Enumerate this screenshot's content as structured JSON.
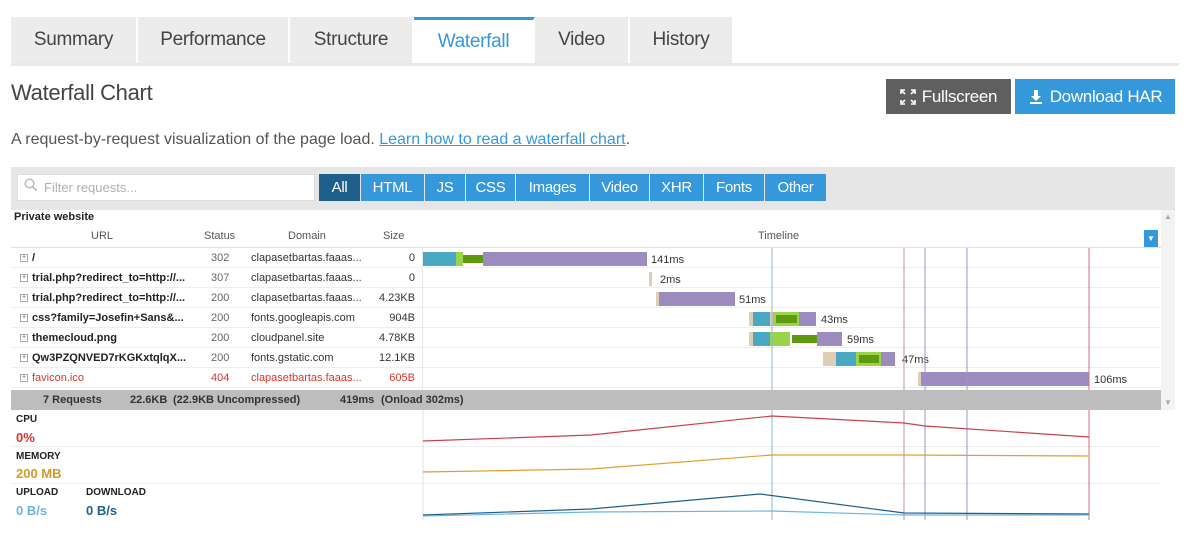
{
  "tabs": [
    {
      "label": "Summary",
      "active": false
    },
    {
      "label": "Performance",
      "active": false
    },
    {
      "label": "Structure",
      "active": false
    },
    {
      "label": "Waterfall",
      "active": true
    },
    {
      "label": "Video",
      "active": false
    },
    {
      "label": "History",
      "active": false
    }
  ],
  "page": {
    "title": "Waterfall Chart",
    "fullscreen_label": "Fullscreen",
    "download_label": "Download HAR",
    "intro_text": "A request-by-request visualization of the page load.",
    "intro_link": "Learn how to read a waterfall chart",
    "intro_end": "."
  },
  "filter": {
    "placeholder": "Filter requests...",
    "types": [
      "All",
      "HTML",
      "JS",
      "CSS",
      "Images",
      "Video",
      "XHR",
      "Fonts",
      "Other"
    ],
    "active_type": "All"
  },
  "table": {
    "site_title": "Private website",
    "headers": {
      "url": "URL",
      "status": "Status",
      "domain": "Domain",
      "size": "Size",
      "timeline": "Timeline"
    },
    "rows": [
      {
        "url": "/",
        "status": "302",
        "domain": "clapasetbartas.faaas...",
        "size": "0",
        "duration": "141ms",
        "error": false
      },
      {
        "url": "trial.php?redirect_to=http://...",
        "status": "307",
        "domain": "clapasetbartas.faaas...",
        "size": "0",
        "duration": "2ms",
        "error": false
      },
      {
        "url": "trial.php?redirect_to=http://...",
        "status": "200",
        "domain": "clapasetbartas.faaas...",
        "size": "4.23KB",
        "duration": "51ms",
        "error": false
      },
      {
        "url": "css?family=Josefin+Sans&...",
        "status": "200",
        "domain": "fonts.googleapis.com",
        "size": "904B",
        "duration": "43ms",
        "error": false
      },
      {
        "url": "themecloud.png",
        "status": "200",
        "domain": "cloudpanel.site",
        "size": "4.78KB",
        "duration": "59ms",
        "error": false
      },
      {
        "url": "Qw3PZQNVED7rKGKxtqlqX...",
        "status": "200",
        "domain": "fonts.gstatic.com",
        "size": "12.1KB",
        "duration": "47ms",
        "error": false
      },
      {
        "url": "favicon.ico",
        "status": "404",
        "domain": "clapasetbartas.faaas...",
        "size": "605B",
        "duration": "106ms",
        "error": true
      }
    ],
    "summary": {
      "requests": "7 Requests",
      "size": "22.6KB",
      "uncompressed": "(22.9KB Uncompressed)",
      "time": "419ms",
      "onload": "(Onload 302ms)"
    }
  },
  "metrics": {
    "cpu_label": "CPU",
    "cpu_value": "0%",
    "memory_label": "MEMORY",
    "memory_value": "200 MB",
    "upload_label": "UPLOAD",
    "upload_value": "0 B/s",
    "download_label": "DOWNLOAD",
    "download_value": "0 B/s"
  },
  "colors": {
    "accent": "#3498db",
    "dns": "#4aa8c2",
    "connect": "#9bd34a",
    "ttfb": "#5e9a10",
    "download": "#9b8bbf",
    "blocked": "#e0cdb6",
    "error": "#d9352a",
    "cpu": "#c9414a",
    "memory": "#e0a030",
    "upload": "#6fb4e0",
    "download_line": "#1f5f8b"
  }
}
